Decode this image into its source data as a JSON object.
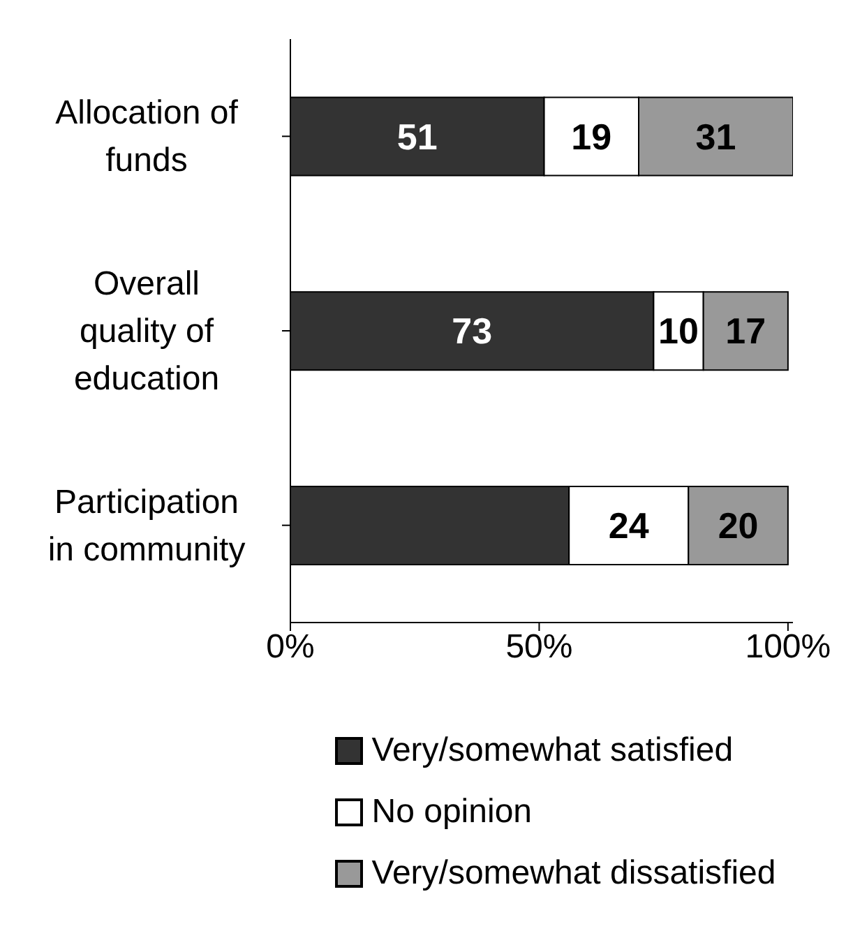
{
  "chart_data": {
    "type": "bar",
    "orientation": "horizontal",
    "stacked": true,
    "categories": [
      "Allocation of funds",
      "Overall quality of education",
      "Participation in community"
    ],
    "series": [
      {
        "name": "Very/somewhat satisfied",
        "color": "#333333",
        "values": [
          51,
          73,
          56
        ],
        "value_labels": [
          "51",
          "73",
          null
        ]
      },
      {
        "name": "No opinion",
        "color": "#ffffff",
        "values": [
          19,
          10,
          24
        ],
        "value_labels": [
          "19",
          "10",
          "24"
        ]
      },
      {
        "name": "Very/somewhat dissatisfied",
        "color": "#999999",
        "values": [
          31,
          17,
          20
        ],
        "value_labels": [
          "31",
          "17",
          "20"
        ]
      }
    ],
    "xlim": [
      0,
      101
    ],
    "xticks": [
      {
        "value": 0,
        "label": "0%"
      },
      {
        "value": 50,
        "label": "50%"
      },
      {
        "value": 100,
        "label": "100%"
      }
    ],
    "grid": false,
    "legend": "bottom"
  }
}
